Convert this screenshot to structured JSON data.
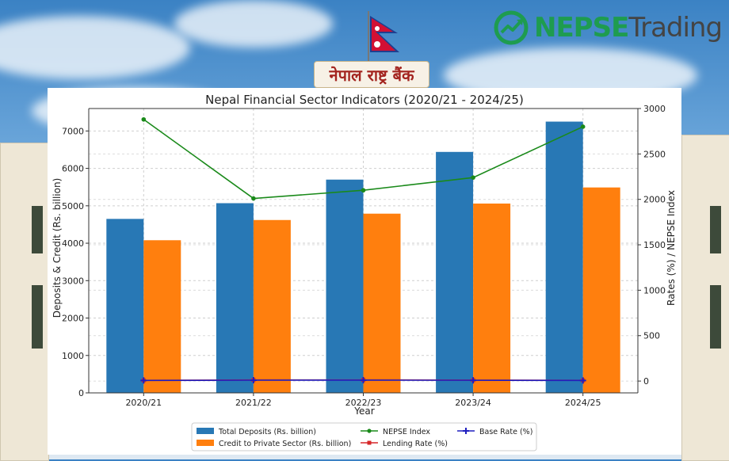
{
  "brand": {
    "part1": "NEPSE",
    "part2": "Trading",
    "logo_icon": "chart-arrow-circle-icon",
    "color": "#1e9c4f"
  },
  "sign": {
    "text": "नेपाल राष्ट्र बैंक"
  },
  "chart_data": {
    "type": "bar",
    "title": "Nepal Financial Sector Indicators (2020/21 - 2024/25)",
    "xlabel": "Year",
    "ylabel": "Deposits & Credit (Rs. billion)",
    "ylabel_right": "Rates (%) / NEPSE Index",
    "categories": [
      "2020/21",
      "2021/22",
      "2022/23",
      "2023/24",
      "2024/25"
    ],
    "ylim": [
      0,
      7600
    ],
    "y_ticks": [
      0,
      1000,
      2000,
      3000,
      4000,
      5000,
      6000,
      7000
    ],
    "ylim_right": [
      -130,
      3000
    ],
    "y_ticks_right": [
      0,
      500,
      1000,
      1500,
      2000,
      2500,
      3000
    ],
    "grid": true,
    "legend_position": "bottom-center",
    "series": [
      {
        "name": "Total Deposits (Rs. billion)",
        "kind": "bar",
        "axis": "left",
        "color": "#2878b5",
        "values": [
          4650,
          5070,
          5700,
          6440,
          7250
        ]
      },
      {
        "name": "Credit to Private Sector (Rs. billion)",
        "kind": "bar",
        "axis": "left",
        "color": "#ff7f0e",
        "values": [
          4080,
          4620,
          4790,
          5060,
          5490
        ]
      },
      {
        "name": "NEPSE Index",
        "kind": "line",
        "axis": "right",
        "color": "#1a8a1a",
        "marker": "circle",
        "values": [
          2880,
          2010,
          2100,
          2240,
          2800
        ]
      },
      {
        "name": "Lending Rate (%)",
        "kind": "line",
        "axis": "right",
        "color": "#d62728",
        "marker": "square",
        "values": [
          8.5,
          12.3,
          12.6,
          10.5,
          8.2
        ]
      },
      {
        "name": "Base Rate (%)",
        "kind": "line",
        "axis": "right",
        "color": "#1f1fbf",
        "marker": "plus",
        "values": [
          6.8,
          9.6,
          10.2,
          8.3,
          6.4
        ]
      }
    ]
  }
}
